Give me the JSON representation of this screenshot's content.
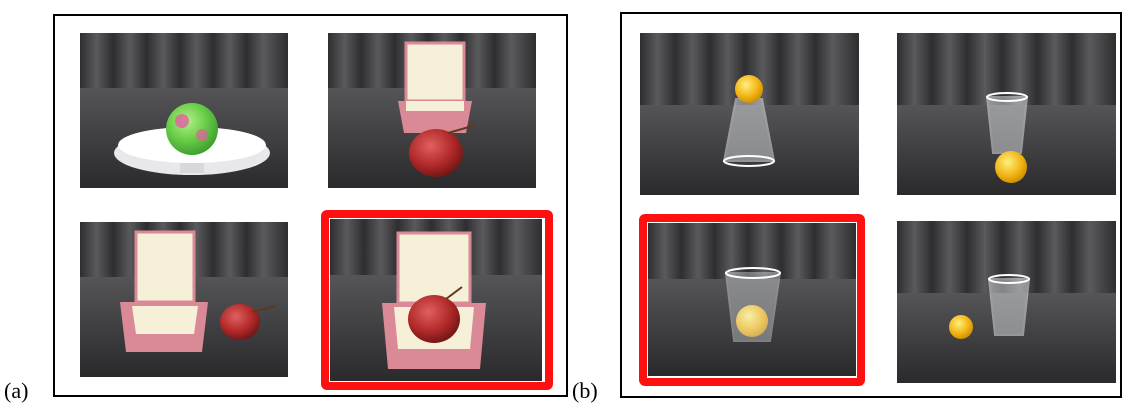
{
  "panels": [
    {
      "label": "(a)",
      "photos": [
        {
          "subject": "ball-in-bowl",
          "selected": false
        },
        {
          "subject": "apple-in-front-of-box",
          "selected": false
        },
        {
          "subject": "apple-beside-box",
          "selected": false
        },
        {
          "subject": "apple-in-box",
          "selected": true
        }
      ]
    },
    {
      "label": "(b)",
      "photos": [
        {
          "subject": "ball-on-top-of-cup",
          "selected": false
        },
        {
          "subject": "ball-in-front-of-cup",
          "selected": false
        },
        {
          "subject": "ball-in-cup",
          "selected": true
        },
        {
          "subject": "ball-beside-cup",
          "selected": false
        }
      ]
    }
  ],
  "colors": {
    "selection": "#ff1010",
    "cloth": "#3a3a3c",
    "curtain": "#4a4a4c",
    "box": "#d98a96",
    "apple": "#b82a2a",
    "ball_yellow": "#f2b514"
  }
}
